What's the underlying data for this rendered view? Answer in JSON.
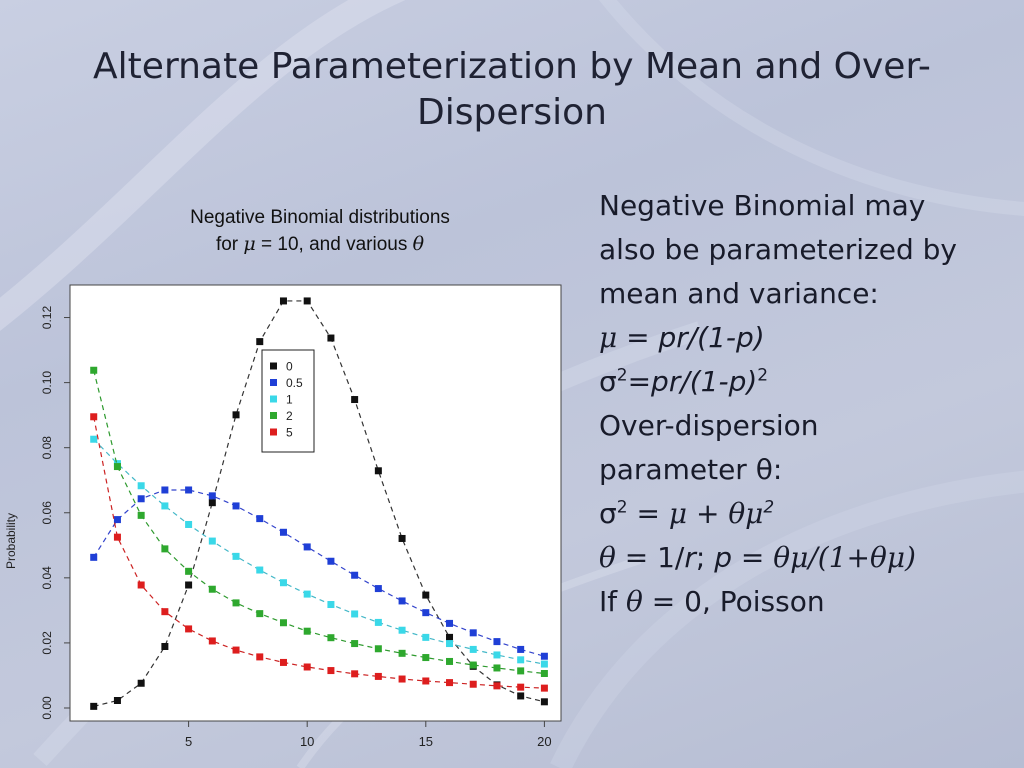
{
  "slide": {
    "title": "Alternate Parameterization by Mean and Over-Dispersion"
  },
  "caption": {
    "line1": "Negative Binomial distributions",
    "line2_prefix": "for ",
    "line2_mu": "μ",
    "line2_mid": " = 10, and various ",
    "line2_theta": "θ"
  },
  "bullets": {
    "intro1": "Negative Binomial may",
    "intro2": "also be parameterized by",
    "intro3": "mean and variance:",
    "mean_sym": "μ",
    "mean_expr": " = pr/(1-p)",
    "var_sym": "σ",
    "var_sup": "2",
    "var_expr": "=pr/(1-p)",
    "var_expr_sup": "2",
    "od1": "Over-dispersion",
    "od2": "parameter θ:",
    "od_var_sym": "σ",
    "od_var_sup": "2",
    "od_var_eq": " = ",
    "od_mu": "μ",
    "od_plus": " + ",
    "od_theta_mu": "θμ",
    "od_sup": "2",
    "rel_theta": "θ",
    "rel_mid": " = 1/",
    "rel_r": "r",
    "rel_semi": "; ",
    "rel_p": "p",
    "rel_eq": " = ",
    "rel_expr": "θμ/(1+θμ)",
    "if_prefix": "If ",
    "if_theta": "θ",
    "if_suffix": " = 0, Poisson"
  },
  "chart_data": {
    "type": "line",
    "title": "",
    "xlabel": "",
    "ylabel": "Probability",
    "xlim": [
      0,
      20.7
    ],
    "ylim": [
      -0.004,
      0.13
    ],
    "x_ticks": [
      5,
      10,
      15,
      20
    ],
    "y_ticks": [
      0.0,
      0.02,
      0.04,
      0.06,
      0.08,
      0.1,
      0.12
    ],
    "y_tick_labels": [
      "0.00",
      "0.02",
      "0.04",
      "0.06",
      "0.08",
      "0.10",
      "0.12"
    ],
    "legend_position": "top-center",
    "grid": false,
    "x": [
      1,
      2,
      3,
      4,
      5,
      6,
      7,
      8,
      9,
      10,
      11,
      12,
      13,
      14,
      15,
      16,
      17,
      18,
      19,
      20
    ],
    "series": [
      {
        "name": "0",
        "color": "#111111",
        "line_color": "#333333",
        "values": [
          0.0005,
          0.0023,
          0.0076,
          0.0189,
          0.0378,
          0.0631,
          0.0901,
          0.1126,
          0.1251,
          0.1251,
          0.1137,
          0.0948,
          0.0729,
          0.0521,
          0.0347,
          0.0217,
          0.0128,
          0.0071,
          0.0037,
          0.0019
        ]
      },
      {
        "name": "0.5",
        "color": "#1f3fd6",
        "line_color": "#3344cc",
        "values": [
          0.0463,
          0.0579,
          0.0643,
          0.067,
          0.067,
          0.0652,
          0.0621,
          0.0582,
          0.054,
          0.0495,
          0.0451,
          0.0408,
          0.0367,
          0.0329,
          0.0293,
          0.026,
          0.0231,
          0.0204,
          0.018,
          0.0159
        ]
      },
      {
        "name": "1",
        "color": "#3ad8e8",
        "line_color": "#44b8c8",
        "values": [
          0.0826,
          0.0751,
          0.0683,
          0.0621,
          0.0564,
          0.0513,
          0.0466,
          0.0424,
          0.0385,
          0.035,
          0.0318,
          0.0289,
          0.0263,
          0.0239,
          0.0217,
          0.0198,
          0.018,
          0.0163,
          0.0148,
          0.0135
        ]
      },
      {
        "name": "2",
        "color": "#2ea82e",
        "line_color": "#2e9a2e",
        "values": [
          0.1038,
          0.0742,
          0.0592,
          0.0489,
          0.042,
          0.0365,
          0.0323,
          0.029,
          0.0262,
          0.0236,
          0.0216,
          0.0198,
          0.0182,
          0.0168,
          0.0155,
          0.0143,
          0.0132,
          0.0123,
          0.0114,
          0.0106
        ]
      },
      {
        "name": "5",
        "color": "#dd1e1e",
        "line_color": "#cc2222",
        "values": [
          0.0895,
          0.0525,
          0.0378,
          0.0296,
          0.0243,
          0.0206,
          0.0178,
          0.0157,
          0.014,
          0.0126,
          0.0115,
          0.0105,
          0.0097,
          0.0089,
          0.0083,
          0.0078,
          0.0073,
          0.0068,
          0.0064,
          0.0061
        ]
      }
    ]
  }
}
